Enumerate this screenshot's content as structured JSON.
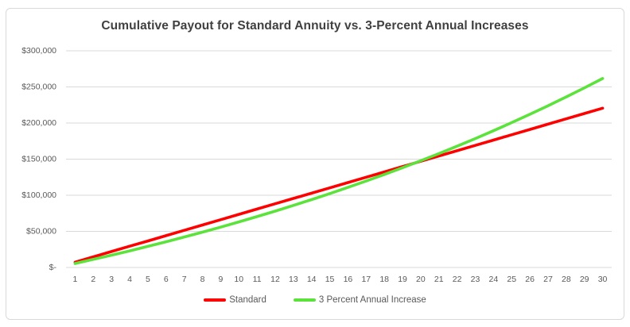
{
  "chart_data": {
    "type": "line",
    "title": "Cumulative Payout for Standard Annuity vs. 3-Percent Annual Increases",
    "xlabel": "",
    "ylabel": "",
    "x": [
      1,
      2,
      3,
      4,
      5,
      6,
      7,
      8,
      9,
      10,
      11,
      12,
      13,
      14,
      15,
      16,
      17,
      18,
      19,
      20,
      21,
      22,
      23,
      24,
      25,
      26,
      27,
      28,
      29,
      30
    ],
    "series": [
      {
        "name": "Standard",
        "color": "#ff0000",
        "values": [
          7350,
          14700,
          22050,
          29400,
          36750,
          44100,
          51450,
          58800,
          66150,
          73500,
          80850,
          88200,
          95550,
          102900,
          110250,
          117600,
          124950,
          132300,
          139650,
          147000,
          154350,
          161700,
          169050,
          176400,
          183750,
          191100,
          198450,
          205800,
          213150,
          220500
        ]
      },
      {
        "name": "3 Percent Annual Increase",
        "color": "#5ce33b",
        "values": [
          5500,
          11165,
          17000,
          23010,
          29200,
          35576,
          42144,
          48908,
          55875,
          63051,
          70443,
          78056,
          85898,
          93975,
          102294,
          110863,
          119689,
          128779,
          138143,
          147787,
          157721,
          167952,
          178491,
          189346,
          200526,
          212042,
          223903,
          236120,
          248704,
          261665
        ]
      }
    ],
    "ylim": [
      0,
      300000
    ],
    "y_ticks": [
      {
        "value": 0,
        "label": "$-"
      },
      {
        "value": 50000,
        "label": "$50,000"
      },
      {
        "value": 100000,
        "label": "$100,000"
      },
      {
        "value": 150000,
        "label": "$150,000"
      },
      {
        "value": 200000,
        "label": "$200,000"
      },
      {
        "value": 250000,
        "label": "$250,000"
      },
      {
        "value": 300000,
        "label": "$300,000"
      }
    ],
    "grid": true,
    "legend_position": "bottom",
    "colors": {
      "background": "#ffffff",
      "card_border": "#d9d9d9",
      "gridline": "#d9d9d9",
      "title_text": "#404040",
      "axis_text": "#595959"
    }
  }
}
